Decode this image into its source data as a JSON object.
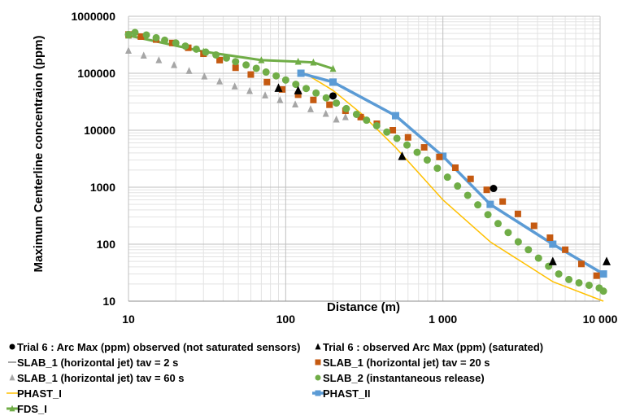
{
  "chart_data": {
    "type": "scatter",
    "xlabel": "Distance (m)",
    "ylabel": "Maximum Centerline concentraion (ppm)",
    "x_scale": "log",
    "y_scale": "log",
    "xlim": [
      10,
      10000
    ],
    "ylim": [
      10,
      1000000
    ],
    "x_ticks": [
      {
        "value": 10,
        "label": "10"
      },
      {
        "value": 100,
        "label": "100"
      },
      {
        "value": 1000,
        "label": "1 000"
      },
      {
        "value": 10000,
        "label": "10 000"
      }
    ],
    "y_ticks": [
      {
        "value": 10,
        "label": "10"
      },
      {
        "value": 100,
        "label": "100"
      },
      {
        "value": 1000,
        "label": "1000"
      },
      {
        "value": 10000,
        "label": "10000"
      },
      {
        "value": 100000,
        "label": "100000"
      },
      {
        "value": 1000000,
        "label": "1000000"
      }
    ],
    "grid": true,
    "legend_position": "bottom",
    "series": [
      {
        "name": "Trial 6 :  Arc Max (ppm) observed (not saturated sensors)",
        "style": "markers",
        "marker": "circle",
        "color": "#000000",
        "x": [
          200,
          2100
        ],
        "y": [
          40000,
          950
        ]
      },
      {
        "name": "Trial 6 : observed Arc Max (ppm) (saturated)",
        "style": "markers",
        "marker": "triangle",
        "color": "#000000",
        "x": [
          90,
          120,
          550,
          5000,
          11000
        ],
        "y": [
          55000,
          50000,
          3500,
          50,
          50
        ]
      },
      {
        "name": "SLAB_1 (horizontal jet) tav = 2 s",
        "style": "line",
        "marker": "dash",
        "color": "#a6a6a6",
        "x": [],
        "y": []
      },
      {
        "name": "SLAB_1 (horizontal jet) tav = 20 s",
        "style": "markers",
        "marker": "square",
        "color": "#c55a11",
        "x": [
          10,
          12,
          15,
          19,
          24,
          30,
          38,
          48,
          60,
          76,
          95,
          120,
          150,
          190,
          240,
          300,
          380,
          480,
          600,
          760,
          950,
          1200,
          1500,
          1900,
          2400,
          3000,
          3800,
          4800,
          6000,
          7600,
          9500
        ],
        "y": [
          480000,
          440000,
          390000,
          340000,
          280000,
          220000,
          170000,
          125000,
          95000,
          70000,
          52000,
          42000,
          34000,
          28000,
          22000,
          17000,
          13000,
          10000,
          7500,
          5000,
          3400,
          2200,
          1400,
          900,
          560,
          340,
          210,
          130,
          80,
          45,
          28
        ]
      },
      {
        "name": "SLAB_1 (horizontal jet) tav = 60 s",
        "style": "markers",
        "marker": "triangle",
        "color": "#a6a6a6",
        "x": [
          10,
          12.5,
          15.6,
          19.5,
          24.3,
          30.4,
          38,
          47.4,
          59,
          74,
          92,
          115,
          144,
          180,
          210,
          240
        ],
        "y": [
          250000,
          205000,
          170000,
          140000,
          110000,
          88000,
          72000,
          59000,
          49000,
          41000,
          34000,
          28500,
          23500,
          19500,
          15500,
          17000
        ]
      },
      {
        "name": "SLAB_2 (instantaneous release)",
        "style": "markers",
        "marker": "circle",
        "color": "#70ad47",
        "x": [
          10,
          11,
          13,
          15,
          17,
          20,
          23,
          27,
          31,
          36,
          42,
          48,
          56,
          65,
          75,
          87,
          100,
          116,
          135,
          156,
          181,
          210,
          243,
          282,
          327,
          379,
          440,
          510,
          591,
          686,
          795,
          922,
          1069,
          1240,
          1438,
          1668,
          1934,
          2243,
          2601,
          3016,
          3498,
          4057,
          4705,
          5456,
          6328,
          7338,
          8510,
          9869,
          10500
        ],
        "y": [
          480000,
          520000,
          470000,
          420000,
          380000,
          340000,
          300000,
          265000,
          235000,
          210000,
          185000,
          160000,
          140000,
          122000,
          105000,
          90000,
          76000,
          64000,
          54000,
          45000,
          37000,
          30000,
          24000,
          19000,
          15000,
          12000,
          9300,
          7200,
          5500,
          4100,
          3000,
          2150,
          1500,
          1050,
          720,
          490,
          330,
          230,
          160,
          110,
          80,
          57,
          41,
          30,
          24,
          21,
          19,
          17,
          15
        ]
      },
      {
        "name": "PHAST_I",
        "style": "line",
        "marker": "none",
        "color": "#ffc000",
        "x": [
          125,
          200,
          300,
          500,
          1000,
          2000,
          5000,
          10500
        ],
        "y": [
          110000,
          50000,
          20000,
          5000,
          600,
          110,
          22,
          10
        ]
      },
      {
        "name": "PHAST_II",
        "style": "line_markers",
        "marker": "square",
        "color": "#5b9bd5",
        "x": [
          125,
          200,
          500,
          1000,
          2000,
          5000,
          10500
        ],
        "y": [
          100000,
          70000,
          18000,
          3500,
          500,
          100,
          30
        ]
      },
      {
        "name": "FDS_I",
        "style": "line_markers",
        "marker": "triangle",
        "color": "#70ad47",
        "x": [
          10,
          30,
          70,
          120,
          150,
          200
        ],
        "y": [
          460000,
          240000,
          170000,
          160000,
          155000,
          120000
        ]
      }
    ]
  }
}
